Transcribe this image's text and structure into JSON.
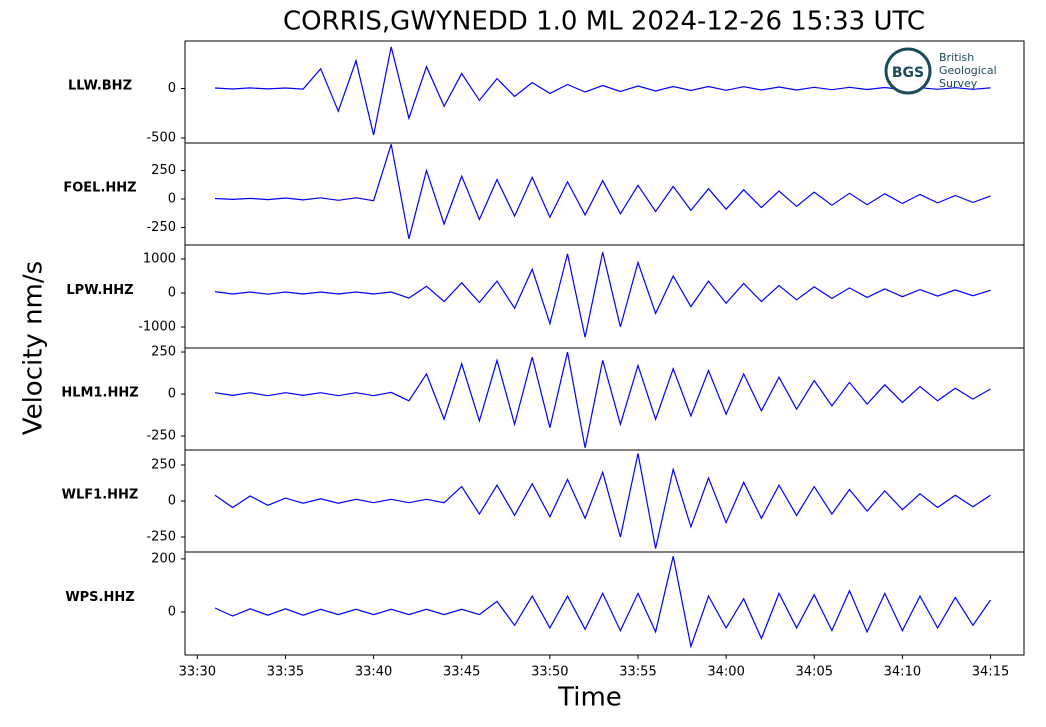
{
  "logo": {
    "abbr": "BGS",
    "lines": [
      "British",
      "Geological",
      "Survey"
    ]
  },
  "chart_data": [
    {
      "type": "line",
      "title": "CORRIS,GWYNEDD 1.0 ML   2024-12-26 15:33 UTC",
      "y_label": "Velocity nm/s",
      "label": "LLW.BHZ",
      "color": "#0000ff",
      "xlim": [
        2009.3,
        2056.9
      ],
      "ylim": [
        -551,
        480
      ],
      "yticks": [
        -500,
        0
      ],
      "x": [
        2011,
        2012,
        2013,
        2014,
        2015,
        2016,
        2017,
        2018,
        2019,
        2020,
        2021,
        2022,
        2023,
        2024,
        2025,
        2026,
        2027,
        2028,
        2029,
        2030,
        2031,
        2032,
        2033,
        2034,
        2035,
        2036,
        2037,
        2038,
        2039,
        2040,
        2041,
        2042,
        2043,
        2044,
        2045,
        2046,
        2047,
        2048,
        2049,
        2050,
        2051,
        2052,
        2053,
        2054,
        2055
      ],
      "values": [
        5,
        -5,
        6,
        -4,
        5,
        -6,
        200,
        -230,
        280,
        -470,
        420,
        -300,
        220,
        -180,
        150,
        -120,
        100,
        -80,
        60,
        -50,
        40,
        -35,
        30,
        -30,
        25,
        -25,
        20,
        -20,
        20,
        -18,
        18,
        -15,
        15,
        -15,
        12,
        -12,
        12,
        -10,
        10,
        -10,
        8,
        -8,
        8,
        -8,
        6
      ]
    },
    {
      "type": "line",
      "label": "FOEL.HHZ",
      "color": "#0000ff",
      "xlim": [
        2009.3,
        2056.9
      ],
      "ylim": [
        -404,
        491
      ],
      "yticks": [
        -250,
        0,
        250
      ],
      "x": [
        2011,
        2012,
        2013,
        2014,
        2015,
        2016,
        2017,
        2018,
        2019,
        2020,
        2021,
        2022,
        2023,
        2024,
        2025,
        2026,
        2027,
        2028,
        2029,
        2030,
        2031,
        2032,
        2033,
        2034,
        2035,
        2036,
        2037,
        2038,
        2039,
        2040,
        2041,
        2042,
        2043,
        2044,
        2045,
        2046,
        2047,
        2048,
        2049,
        2050,
        2051,
        2052,
        2053,
        2054,
        2055
      ],
      "values": [
        4,
        -4,
        5,
        -6,
        8,
        -8,
        10,
        -12,
        10,
        -15,
        480,
        -350,
        250,
        -220,
        200,
        -180,
        170,
        -150,
        190,
        -160,
        150,
        -140,
        160,
        -130,
        120,
        -110,
        110,
        -100,
        90,
        -90,
        80,
        -75,
        70,
        -65,
        60,
        -55,
        50,
        -50,
        45,
        -40,
        40,
        -35,
        30,
        -30,
        25
      ]
    },
    {
      "type": "line",
      "label": "LPW.HHZ",
      "color": "#0000ff",
      "xlim": [
        2009.3,
        2056.9
      ],
      "ylim": [
        -1618,
        1412
      ],
      "yticks": [
        -1000,
        0,
        1000
      ],
      "x": [
        2011,
        2012,
        2013,
        2014,
        2015,
        2016,
        2017,
        2018,
        2019,
        2020,
        2021,
        2022,
        2023,
        2024,
        2025,
        2026,
        2027,
        2028,
        2029,
        2030,
        2031,
        2032,
        2033,
        2034,
        2035,
        2036,
        2037,
        2038,
        2039,
        2040,
        2041,
        2042,
        2043,
        2044,
        2045,
        2046,
        2047,
        2048,
        2049,
        2050,
        2051,
        2052,
        2053,
        2054,
        2055
      ],
      "values": [
        40,
        -30,
        30,
        -35,
        30,
        -30,
        30,
        -30,
        30,
        -30,
        30,
        -150,
        200,
        -250,
        300,
        -280,
        350,
        -450,
        700,
        -900,
        1150,
        -1300,
        1200,
        -1000,
        900,
        -600,
        500,
        -400,
        350,
        -300,
        280,
        -250,
        220,
        -200,
        180,
        -160,
        150,
        -130,
        120,
        -110,
        100,
        -90,
        90,
        -80,
        80
      ]
    },
    {
      "type": "line",
      "label": "HLM1.HHZ",
      "color": "#0000ff",
      "xlim": [
        2009.3,
        2056.9
      ],
      "ylim": [
        -333,
        274
      ],
      "yticks": [
        -250,
        0,
        250
      ],
      "x": [
        2011,
        2012,
        2013,
        2014,
        2015,
        2016,
        2017,
        2018,
        2019,
        2020,
        2021,
        2022,
        2023,
        2024,
        2025,
        2026,
        2027,
        2028,
        2029,
        2030,
        2031,
        2032,
        2033,
        2034,
        2035,
        2036,
        2037,
        2038,
        2039,
        2040,
        2041,
        2042,
        2043,
        2044,
        2045,
        2046,
        2047,
        2048,
        2049,
        2050,
        2051,
        2052,
        2053,
        2054,
        2055
      ],
      "values": [
        8,
        -8,
        8,
        -10,
        8,
        -8,
        8,
        -10,
        8,
        -10,
        10,
        -40,
        120,
        -150,
        180,
        -160,
        200,
        -180,
        220,
        -200,
        250,
        -320,
        200,
        -180,
        170,
        -150,
        150,
        -130,
        140,
        -120,
        120,
        -100,
        100,
        -90,
        80,
        -70,
        70,
        -60,
        55,
        -50,
        45,
        -40,
        35,
        -30,
        30
      ]
    },
    {
      "type": "line",
      "label": "WLF1.HHZ",
      "color": "#0000ff",
      "xlim": [
        2009.3,
        2056.9
      ],
      "ylim": [
        -354,
        354
      ],
      "yticks": [
        -250,
        0,
        250
      ],
      "x": [
        2011,
        2012,
        2013,
        2014,
        2015,
        2016,
        2017,
        2018,
        2019,
        2020,
        2021,
        2022,
        2023,
        2024,
        2025,
        2026,
        2027,
        2028,
        2029,
        2030,
        2031,
        2032,
        2033,
        2034,
        2035,
        2036,
        2037,
        2038,
        2039,
        2040,
        2041,
        2042,
        2043,
        2044,
        2045,
        2046,
        2047,
        2048,
        2049,
        2050,
        2051,
        2052,
        2053,
        2054,
        2055
      ],
      "values": [
        40,
        -45,
        35,
        -30,
        20,
        -15,
        15,
        -15,
        12,
        -12,
        12,
        -12,
        12,
        -12,
        100,
        -90,
        110,
        -100,
        120,
        -110,
        150,
        -120,
        200,
        -250,
        330,
        -330,
        220,
        -180,
        160,
        -150,
        130,
        -120,
        110,
        -100,
        100,
        -90,
        80,
        -70,
        70,
        -60,
        50,
        -45,
        40,
        -40,
        40
      ]
    },
    {
      "type": "line",
      "label": "WPS.HHZ",
      "color": "#0000ff",
      "x_label": "Time",
      "xlim": [
        2009.3,
        2056.9
      ],
      "ylim": [
        -162,
        226
      ],
      "yticks": [
        0,
        200
      ],
      "xticks": [
        {
          "value": 2010,
          "label": "33:30"
        },
        {
          "value": 2015,
          "label": "33:35"
        },
        {
          "value": 2020,
          "label": "33:40"
        },
        {
          "value": 2025,
          "label": "33:45"
        },
        {
          "value": 2030,
          "label": "33:50"
        },
        {
          "value": 2035,
          "label": "33:55"
        },
        {
          "value": 2040,
          "label": "34:00"
        },
        {
          "value": 2045,
          "label": "34:05"
        },
        {
          "value": 2050,
          "label": "34:10"
        },
        {
          "value": 2055,
          "label": "34:15"
        }
      ],
      "x": [
        2011,
        2012,
        2013,
        2014,
        2015,
        2016,
        2017,
        2018,
        2019,
        2020,
        2021,
        2022,
        2023,
        2024,
        2025,
        2026,
        2027,
        2028,
        2029,
        2030,
        2031,
        2032,
        2033,
        2034,
        2035,
        2036,
        2037,
        2038,
        2039,
        2040,
        2041,
        2042,
        2043,
        2044,
        2045,
        2046,
        2047,
        2048,
        2049,
        2050,
        2051,
        2052,
        2053,
        2054,
        2055
      ],
      "values": [
        15,
        -15,
        12,
        -12,
        12,
        -12,
        10,
        -10,
        10,
        -10,
        10,
        -10,
        10,
        -10,
        10,
        -10,
        40,
        -50,
        60,
        -60,
        60,
        -65,
        70,
        -70,
        70,
        -75,
        210,
        -130,
        60,
        -60,
        50,
        -100,
        70,
        -60,
        65,
        -70,
        80,
        -75,
        70,
        -70,
        60,
        -60,
        55,
        -50,
        45
      ]
    }
  ]
}
